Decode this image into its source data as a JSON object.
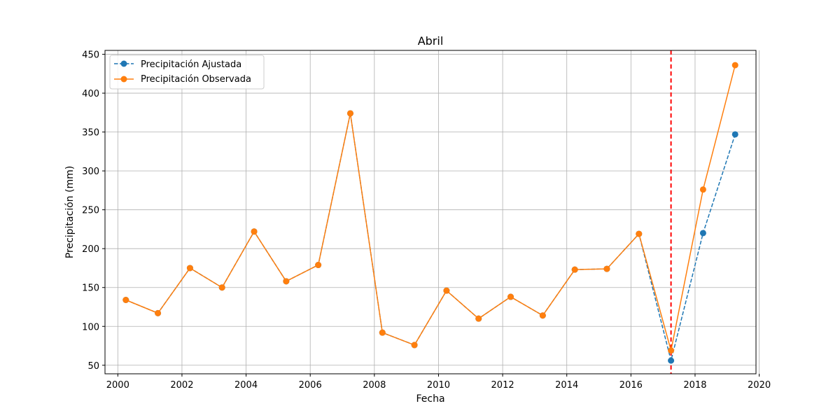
{
  "chart_data": {
    "type": "line",
    "title": "Abril",
    "xlabel": "Fecha",
    "ylabel": "Precipitación (mm)",
    "xlim": [
      1999.6,
      2019.9
    ],
    "ylim": [
      39,
      455
    ],
    "xticks": [
      2000,
      2002,
      2004,
      2006,
      2008,
      2010,
      2012,
      2014,
      2016,
      2018,
      2020
    ],
    "yticks": [
      50,
      100,
      150,
      200,
      250,
      300,
      350,
      400,
      450
    ],
    "grid": true,
    "legend_position": "top-left",
    "vertical_line": {
      "x": 2017.25,
      "color": "#ff0000",
      "style": "dashed"
    },
    "x": [
      2000.25,
      2001.25,
      2002.25,
      2003.25,
      2004.25,
      2005.25,
      2006.25,
      2007.25,
      2008.25,
      2009.25,
      2010.25,
      2011.25,
      2012.25,
      2013.25,
      2014.25,
      2015.25,
      2016.25,
      2017.25,
      2018.25,
      2019.25
    ],
    "series": [
      {
        "name": "Precipitación Ajustada",
        "color": "#1f77b4",
        "style": "dashed",
        "values": [
          134,
          117,
          175,
          150,
          222,
          158,
          179,
          374,
          92,
          76,
          146,
          110,
          138,
          114,
          173,
          174,
          219,
          56,
          220,
          347
        ]
      },
      {
        "name": "Precipitación Observada",
        "color": "#ff7f0e",
        "style": "solid",
        "values": [
          134,
          117,
          175,
          150,
          222,
          158,
          179,
          374,
          92,
          76,
          146,
          110,
          138,
          114,
          173,
          174,
          219,
          69,
          276,
          436
        ]
      }
    ]
  }
}
